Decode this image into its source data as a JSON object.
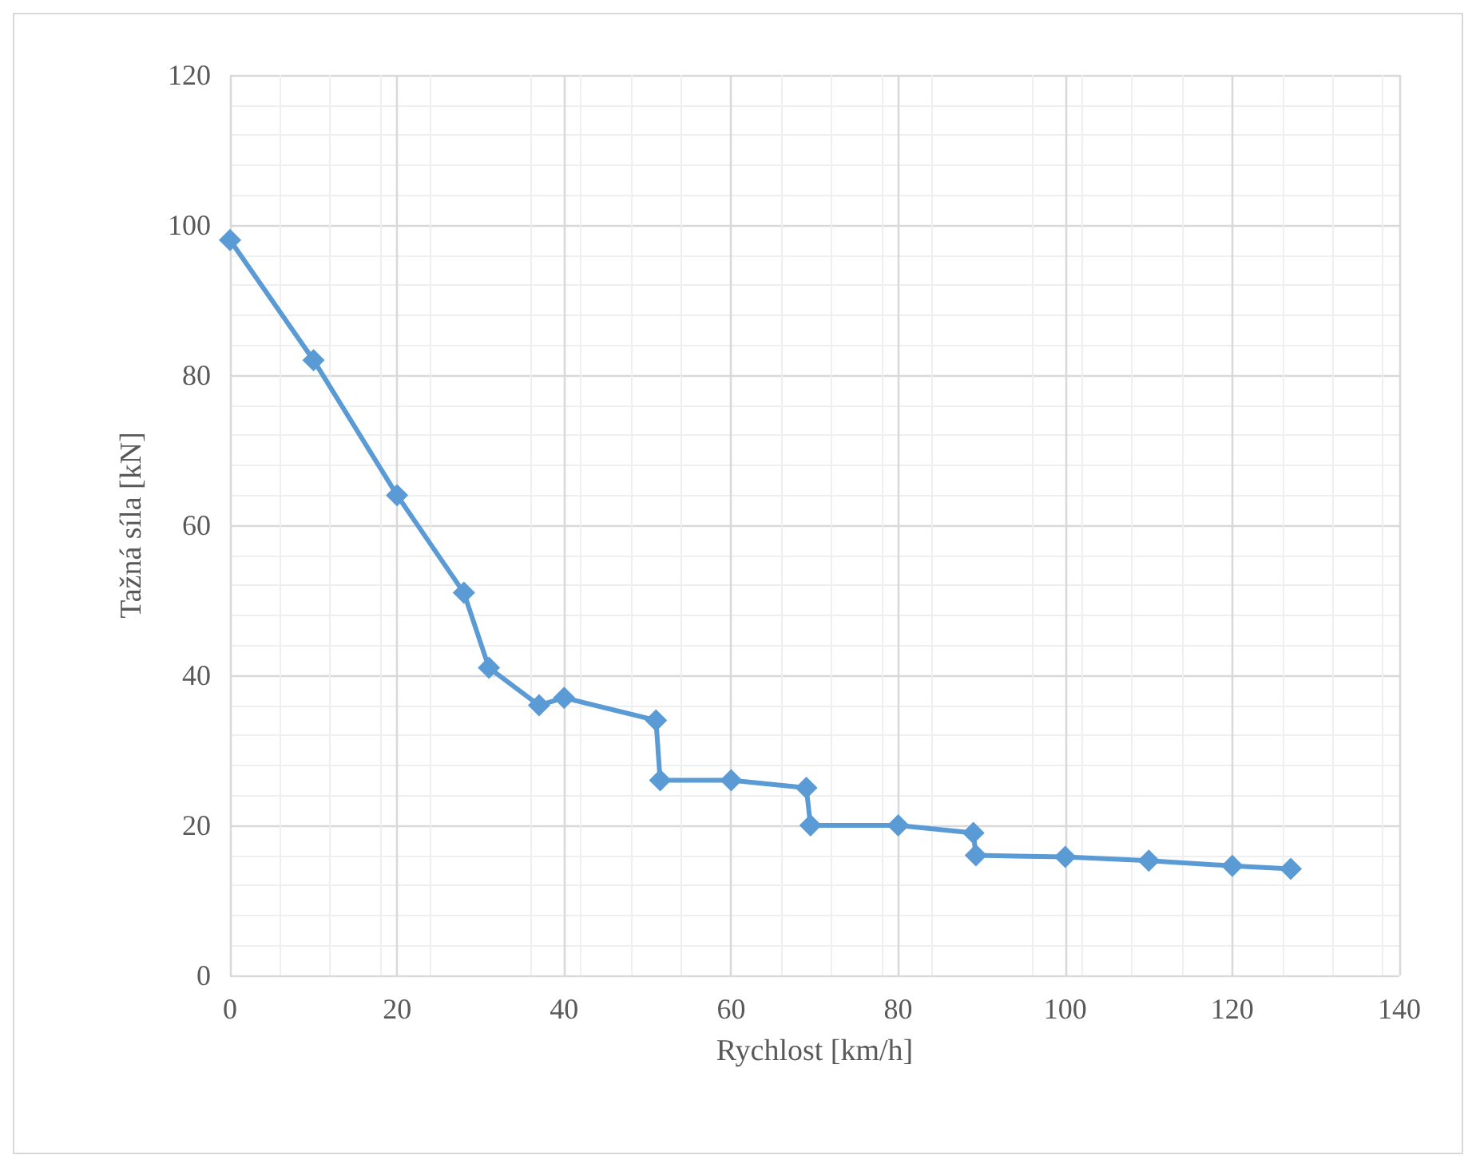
{
  "chart_data": {
    "type": "line",
    "xlabel": "Rychlost [km/h]",
    "ylabel": "Tažná síla [kN]",
    "x": [
      0,
      10,
      20,
      28,
      31,
      37,
      40,
      51,
      51.5,
      60,
      69,
      69.5,
      80,
      89,
      89.3,
      100,
      110,
      120,
      127
    ],
    "series": [
      {
        "color": "#5b9bd5",
        "values": [
          98,
          82,
          64,
          51,
          41,
          36,
          37,
          34,
          26,
          26,
          25,
          20,
          20,
          19,
          16,
          15.8,
          15.3,
          14.6,
          14.2
        ]
      }
    ],
    "xlim": [
      0,
      140
    ],
    "xticks": [
      0,
      20,
      40,
      60,
      80,
      100,
      120,
      140
    ],
    "ylim": [
      0,
      120
    ],
    "yticks": [
      0,
      20,
      40,
      60,
      80,
      100,
      120
    ],
    "grid": true,
    "marker": "diamond",
    "line_style": "solid"
  }
}
